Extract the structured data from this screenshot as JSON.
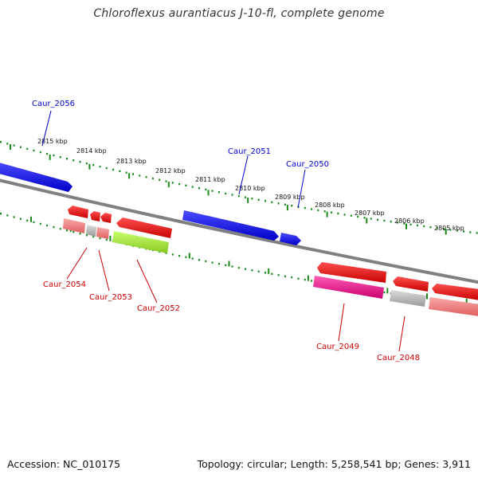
{
  "title": "Chloroflexus aurantiacus J-10-fl, complete genome",
  "footer": {
    "accession": "Accession: NC_010175",
    "topology": "Topology: circular; Length: 5,258,541 bp; Genes: 3,911"
  },
  "colors": {
    "background": "#ffffff",
    "backbone": "#808080",
    "ruler": "#1a8a1a",
    "forward_gene_label": "#0000cc",
    "reverse_gene_label": "#cc0000"
  },
  "ruler_ticks": [
    "2815 kbp",
    "2814 kbp",
    "2813 kbp",
    "2812 kbp",
    "2811 kbp",
    "2810 kbp",
    "2809 kbp",
    "2808 kbp",
    "2807 kbp",
    "2806 kbp",
    "2805 kbp"
  ],
  "forward_gene_labels": [
    "Caur_2056",
    "Caur_2051",
    "Caur_2050"
  ],
  "reverse_gene_labels": [
    "Caur_2054",
    "Caur_2053",
    "Caur_2052",
    "Caur_2049",
    "Caur_2048"
  ],
  "feature_colors": {
    "cds_forward": "#1010ee",
    "cds_reverse": "#ee1010",
    "gene_reverse": "#f08080",
    "pseudo_grey": "#b8b8b8",
    "highlight_green": "#a8e838",
    "highlight_magenta": "#e8188c"
  }
}
